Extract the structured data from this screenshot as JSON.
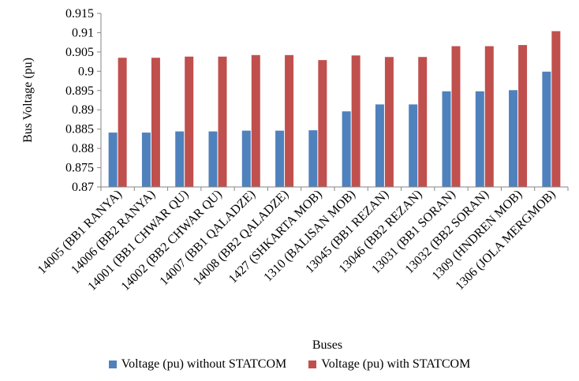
{
  "chart_data": {
    "type": "bar",
    "xlabel": "Buses",
    "ylabel": "Bus Voltage (pu)",
    "ylim": [
      0.87,
      0.915
    ],
    "yticks": [
      "0.87",
      "0.875",
      "0.88",
      "0.885",
      "0.89",
      "0.895",
      "0.9",
      "0.905",
      "0.91",
      "0.915"
    ],
    "grid": false,
    "legend_position": "bottom",
    "categories": [
      "14005 (BB1 RANYA)",
      "14006 (BB2 RANYA)",
      "14001 (BB1 CHWAR QU)",
      "14002 (BB2 CHWAR QU)",
      "14007 (BB1 QALADZE)",
      "14008 (BB2 QALADZE)",
      "1427 (SHKARTA MOB)",
      "1310 (BALISAN MOB)",
      "13045 (BB1 REZAN)",
      "13046 (BB2 REZAN)",
      "13031 (BB1 SORAN)",
      "13032 (BB2 SORAN)",
      "1309 (HNDREN MOB)",
      "1306 (JOLA MERGMOB)"
    ],
    "series": [
      {
        "name": "Voltage (pu) without STATCOM",
        "color": "#4f81bd",
        "values": [
          0.8841,
          0.8841,
          0.8844,
          0.8844,
          0.8846,
          0.8846,
          0.8847,
          0.8896,
          0.8914,
          0.8914,
          0.8948,
          0.8948,
          0.8951,
          0.8999
        ]
      },
      {
        "name": "Voltage (pu) with STATCOM",
        "color": "#c0504d",
        "values": [
          0.9035,
          0.9035,
          0.9038,
          0.9038,
          0.9042,
          0.9042,
          0.9029,
          0.9041,
          0.9037,
          0.9037,
          0.9065,
          0.9065,
          0.9068,
          0.9104
        ]
      }
    ]
  }
}
